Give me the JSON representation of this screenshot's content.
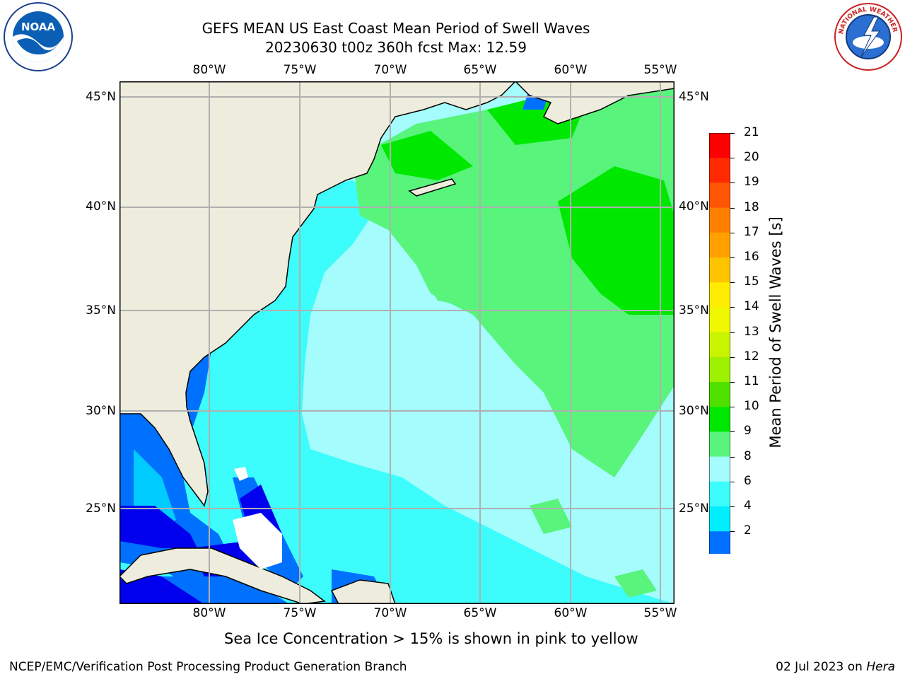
{
  "title": {
    "line1": "GEFS MEAN US East Coast Mean Period of Swell Waves",
    "line2": "20230630 t00z 360h fcst   Max: 12.59"
  },
  "logos": {
    "left": "NOAA",
    "right": "NATIONAL WEATHER SERVICE"
  },
  "map": {
    "longitudes": [
      "80°W",
      "75°W",
      "70°W",
      "65°W",
      "60°W",
      "55°W"
    ],
    "latitudes": [
      "45°N",
      "40°N",
      "35°N",
      "30°N",
      "25°N"
    ],
    "colors": {
      "land": "#eeecdc",
      "ocean_6_8": "#3cfcfc",
      "ocean_8_9": "#a4fcfc",
      "ocean_9_10": "#58f47c",
      "ocean_10_11": "#00e800",
      "ocean_4_6": "#00ccff",
      "ocean_2_4": "#0070ff",
      "ocean_lt2": "#0000ee",
      "grid": "#b0b0b0"
    }
  },
  "colorbar": {
    "label": "Mean Period of Swell Waves [s]",
    "ticks": [
      "21",
      "20",
      "19",
      "18",
      "17",
      "16",
      "15",
      "14",
      "13",
      "12",
      "11",
      "10",
      "9",
      "8",
      "6",
      "4",
      "2"
    ],
    "colors": [
      "#ff0000",
      "#ff2a00",
      "#ff5500",
      "#ff7f00",
      "#ffa000",
      "#ffc400",
      "#ffec00",
      "#f0f800",
      "#c8f400",
      "#9cf000",
      "#50e000",
      "#00e800",
      "#58f47c",
      "#a4fcfc",
      "#3cfcfc",
      "#00eeff",
      "#0070ff"
    ],
    "extend_color": "#0000ee"
  },
  "notes": {
    "sea_ice": "Sea Ice Concentration > 15% is shown in pink to yellow"
  },
  "footer": {
    "left": "NCEP/EMC/Verification Post Processing Product Generation Branch",
    "right_prefix": "02 Jul 2023 on ",
    "right_host": "Hera"
  }
}
